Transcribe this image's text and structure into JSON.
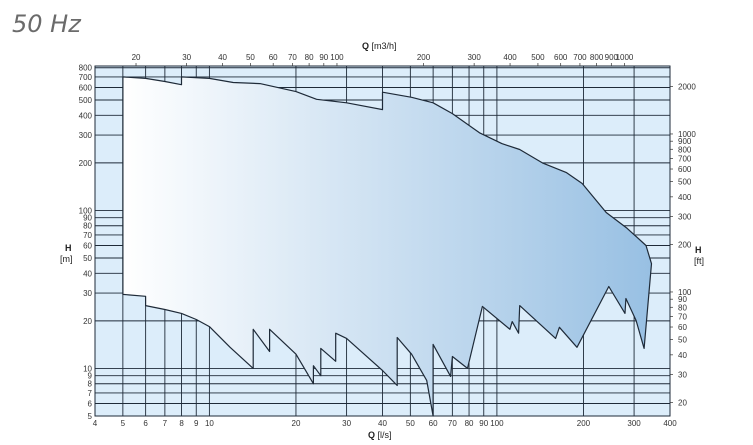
{
  "title": "50 Hz",
  "chart_data": {
    "type": "area",
    "title": "50 Hz",
    "x_scale": "log",
    "y_scale": "log",
    "grid": true,
    "xlabel_bottom": {
      "bold": "Q",
      "unit": "[l/s]"
    },
    "xlabel_top": {
      "bold": "Q",
      "unit": "[m3/h]"
    },
    "ylabel_left": {
      "bold": "H",
      "unit": "[m]"
    },
    "ylabel_right": {
      "bold": "H",
      "unit": "[ft]"
    },
    "xlim": [
      4,
      400
    ],
    "ylim": [
      5,
      800
    ],
    "x_ticks_bottom": [
      4,
      5,
      6,
      7,
      8,
      9,
      10,
      20,
      30,
      40,
      50,
      60,
      70,
      80,
      90,
      100,
      200,
      300,
      400
    ],
    "x_ticks_top": [
      20,
      30,
      40,
      50,
      60,
      70,
      80,
      90,
      100,
      200,
      300,
      400,
      500,
      600,
      700,
      800,
      900,
      1000
    ],
    "y_ticks_left": [
      5,
      6,
      7,
      8,
      9,
      10,
      20,
      30,
      40,
      50,
      60,
      70,
      80,
      90,
      100,
      200,
      300,
      400,
      500,
      600,
      700,
      800
    ],
    "y_ticks_right": [
      20,
      30,
      40,
      50,
      60,
      70,
      80,
      90,
      100,
      200,
      300,
      400,
      500,
      600,
      700,
      800,
      900,
      1000,
      2000
    ],
    "colors": {
      "background": "#dcedfa",
      "fill_start": "#ffffff",
      "fill_end": "#98c0e3",
      "outline": "#1e2a38",
      "grid": "#1e2a38"
    },
    "envelope_Q_H": [
      [
        5,
        700
      ],
      [
        6,
        685
      ],
      [
        7,
        655
      ],
      [
        8,
        625
      ],
      [
        8,
        700
      ],
      [
        10,
        685
      ],
      [
        12.1,
        645
      ],
      [
        15,
        635
      ],
      [
        20,
        565
      ],
      [
        23.6,
        505
      ],
      [
        30,
        480
      ],
      [
        40,
        435
      ],
      [
        40,
        560
      ],
      [
        50.5,
        520
      ],
      [
        60,
        480
      ],
      [
        70,
        410
      ],
      [
        87,
        310
      ],
      [
        104,
        265
      ],
      [
        120,
        243
      ],
      [
        144,
        200
      ],
      [
        174,
        174
      ],
      [
        198,
        148
      ],
      [
        240,
        97
      ],
      [
        284,
        77
      ],
      [
        330,
        60
      ],
      [
        345,
        46
      ],
      [
        325,
        13.4
      ],
      [
        305,
        20.1
      ],
      [
        281,
        27.7
      ],
      [
        279,
        22.3
      ],
      [
        245,
        33
      ],
      [
        190,
        13.6
      ],
      [
        165,
        18.2
      ],
      [
        160,
        15.5
      ],
      [
        120,
        25
      ],
      [
        119,
        16.7
      ],
      [
        113,
        19.8
      ],
      [
        111,
        17.7
      ],
      [
        89,
        24.7
      ],
      [
        79,
        10
      ],
      [
        70,
        11.9
      ],
      [
        69,
        8.9
      ],
      [
        60,
        14.2
      ],
      [
        60,
        5.0
      ],
      [
        57,
        8.4
      ],
      [
        50.5,
        12.3
      ],
      [
        45,
        15.7
      ],
      [
        45,
        7.8
      ],
      [
        40,
        9.7
      ],
      [
        30,
        15.5
      ],
      [
        27.5,
        16.7
      ],
      [
        27.5,
        11.1
      ],
      [
        24.4,
        13.4
      ],
      [
        24.4,
        9.0
      ],
      [
        23,
        10.4
      ],
      [
        23,
        8.0
      ],
      [
        20,
        12.3
      ],
      [
        16.2,
        17.7
      ],
      [
        16.2,
        12.8
      ],
      [
        14.2,
        17.7
      ],
      [
        14.2,
        10
      ],
      [
        11.8,
        13.6
      ],
      [
        10,
        18.4
      ],
      [
        9,
        20.4
      ],
      [
        8,
        22.3
      ],
      [
        7,
        23.6
      ],
      [
        6,
        25
      ],
      [
        6,
        28.6
      ],
      [
        5,
        29.4
      ]
    ]
  }
}
